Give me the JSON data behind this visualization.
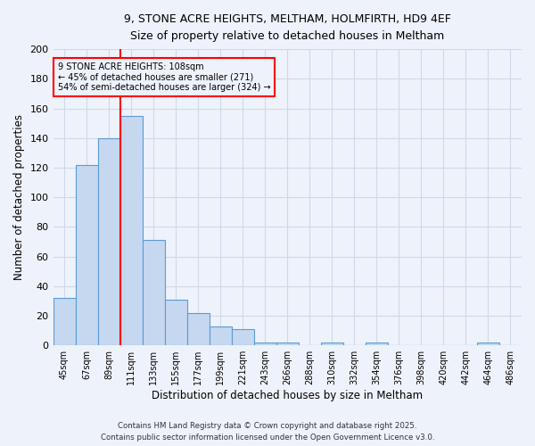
{
  "title_line1": "9, STONE ACRE HEIGHTS, MELTHAM, HOLMFIRTH, HD9 4EF",
  "title_line2": "Size of property relative to detached houses in Meltham",
  "categories": [
    "45sqm",
    "67sqm",
    "89sqm",
    "111sqm",
    "133sqm",
    "155sqm",
    "177sqm",
    "199sqm",
    "221sqm",
    "243sqm",
    "266sqm",
    "288sqm",
    "310sqm",
    "332sqm",
    "354sqm",
    "376sqm",
    "398sqm",
    "420sqm",
    "442sqm",
    "464sqm",
    "486sqm"
  ],
  "values": [
    32,
    122,
    140,
    155,
    71,
    31,
    22,
    13,
    11,
    2,
    2,
    0,
    2,
    0,
    2,
    0,
    0,
    0,
    0,
    2,
    0
  ],
  "bar_color": "#c5d8f0",
  "bar_edge_color": "#5b9bd5",
  "red_line_x": 3,
  "annotation_text_line1": "9 STONE ACRE HEIGHTS: 108sqm",
  "annotation_text_line2": "← 45% of detached houses are smaller (271)",
  "annotation_text_line3": "54% of semi-detached houses are larger (324) →",
  "xlabel": "Distribution of detached houses by size in Meltham",
  "ylabel": "Number of detached properties",
  "ylim": [
    0,
    200
  ],
  "yticks": [
    0,
    20,
    40,
    60,
    80,
    100,
    120,
    140,
    160,
    180,
    200
  ],
  "footer_line1": "Contains HM Land Registry data © Crown copyright and database right 2025.",
  "footer_line2": "Contains public sector information licensed under the Open Government Licence v3.0.",
  "bg_color": "#eef2fa",
  "grid_color": "#d0d8e8"
}
